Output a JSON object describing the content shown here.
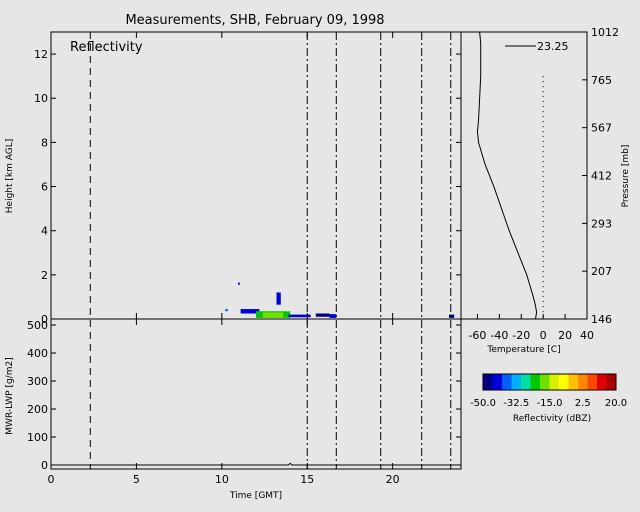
{
  "chart_data": [
    {
      "type": "heatmap",
      "title": "Measurements, SHB, February 09, 1998",
      "label": "Reflectivity",
      "ylabel": "Height [km AGL]",
      "xlim": [
        0,
        24
      ],
      "ylim": [
        0,
        13
      ],
      "yticks": [
        "0",
        "2",
        "4",
        "6",
        "8",
        "10",
        "12"
      ],
      "vlines_dashed": [
        2.3
      ],
      "vlines_dashdot": [
        15.0,
        16.7,
        19.3,
        21.7,
        23.4
      ],
      "echo_cells": [
        {
          "x0": 10.2,
          "x1": 10.35,
          "y0": 0.35,
          "y1": 0.45,
          "dbz": -40
        },
        {
          "x0": 10.95,
          "x1": 11.05,
          "y0": 1.55,
          "y1": 1.65,
          "dbz": -45
        },
        {
          "x0": 11.1,
          "x1": 12.2,
          "y0": 0.25,
          "y1": 0.45,
          "dbz": -45
        },
        {
          "x0": 12.0,
          "x1": 14.0,
          "y0": 0.05,
          "y1": 0.35,
          "dbz": -25
        },
        {
          "x0": 12.4,
          "x1": 13.6,
          "y0": 0.05,
          "y1": 0.3,
          "dbz": -20
        },
        {
          "x0": 13.2,
          "x1": 13.45,
          "y0": 0.65,
          "y1": 1.2,
          "dbz": -45
        },
        {
          "x0": 13.9,
          "x1": 15.2,
          "y0": 0.08,
          "y1": 0.2,
          "dbz": -45
        },
        {
          "x0": 15.5,
          "x1": 16.3,
          "y0": 0.1,
          "y1": 0.25,
          "dbz": -50
        },
        {
          "x0": 16.3,
          "x1": 16.7,
          "y0": 0.05,
          "y1": 0.22,
          "dbz": -45
        },
        {
          "x0": 23.3,
          "x1": 23.6,
          "y0": 0.05,
          "y1": 0.2,
          "dbz": -50
        }
      ]
    },
    {
      "type": "line",
      "xlabel": "Time [GMT]",
      "ylabel": "MWR-LWP [g/m2]",
      "xlim": [
        0,
        24
      ],
      "ylim": [
        0,
        500
      ],
      "xticks": [
        "0",
        "5",
        "10",
        "15",
        "20"
      ],
      "yticks": [
        "0",
        "100",
        "200",
        "300",
        "400",
        "500"
      ],
      "x": [
        0,
        13.9,
        14.0,
        14.1,
        24
      ],
      "y": [
        0,
        0,
        6,
        0,
        0
      ]
    },
    {
      "type": "line",
      "xlabel": "Temperature [C]",
      "y2label": "Pressure [mb]",
      "legend": "23.25",
      "xticks": [
        "-60",
        "-40",
        "-20",
        "0",
        "20",
        "40"
      ],
      "xlim": [
        -75,
        40
      ],
      "pressure_ticks": [
        "146",
        "207",
        "293",
        "412",
        "567",
        "765",
        "1012"
      ],
      "height_km": [
        0,
        0.3,
        0.6,
        1.0,
        1.5,
        2.0,
        3.0,
        4.0,
        5.0,
        6.0,
        7.0,
        8.0,
        8.5,
        9.0,
        10.0,
        11.0,
        12.0,
        12.5,
        13.0
      ],
      "temperature_c": [
        -7,
        -6,
        -7,
        -9,
        -12,
        -15,
        -23,
        -31,
        -38,
        -45,
        -53,
        -59,
        -60,
        -59,
        -58,
        -57,
        -57,
        -57,
        -58
      ],
      "zero_line_c": 0
    }
  ],
  "colorbar": {
    "label": "Reflectivity (dBZ)",
    "ticks": [
      "-50.0",
      "-32.5",
      "-15.0",
      "2.5",
      "20.0"
    ],
    "range": [
      -50,
      20
    ],
    "colors": [
      "#000084",
      "#0000d8",
      "#0060ff",
      "#00b0ff",
      "#00e0a0",
      "#00c800",
      "#70e000",
      "#d8f000",
      "#ffff00",
      "#ffc000",
      "#ff8800",
      "#ff4800",
      "#e00000",
      "#a80000"
    ]
  }
}
